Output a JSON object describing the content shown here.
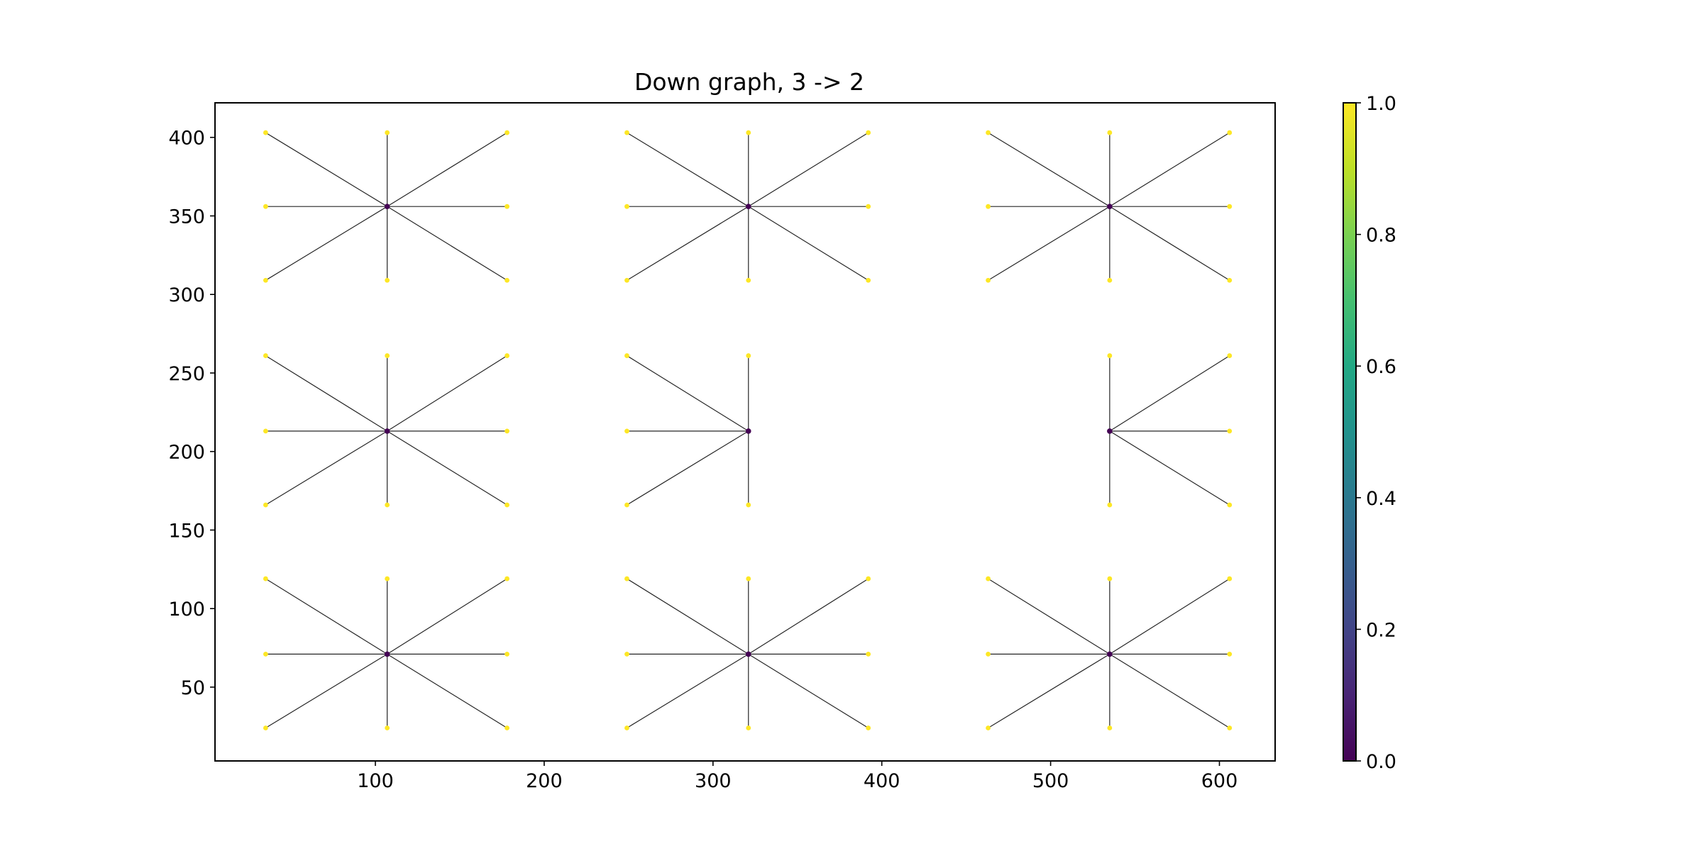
{
  "chart_data": {
    "type": "scatter",
    "title": "Down graph, 3 -> 2",
    "xlabel": "",
    "ylabel": "",
    "xlim": [
      5,
      633
    ],
    "ylim": [
      3,
      422
    ],
    "xticks": [
      100,
      200,
      300,
      400,
      500,
      600
    ],
    "yticks": [
      50,
      100,
      150,
      200,
      250,
      300,
      350,
      400
    ],
    "grid": false,
    "legend": "none",
    "colorbar": {
      "colormap": "viridis",
      "range": [
        0,
        1
      ],
      "ticks": [
        "0.0",
        "0.2",
        "0.4",
        "0.6",
        "0.8",
        "1.0"
      ],
      "stops": [
        "#440154",
        "#482475",
        "#414487",
        "#355f8d",
        "#2a788e",
        "#21918c",
        "#22a884",
        "#44bf70",
        "#7ad151",
        "#bddf26",
        "#fde725"
      ]
    },
    "node_colors": {
      "center": "#440154",
      "leaf": "#fde725"
    },
    "edge_color": "#000000",
    "stars": [
      {
        "center": [
          107,
          71
        ],
        "leaves": [
          [
            35,
            24
          ],
          [
            107,
            24
          ],
          [
            178,
            24
          ],
          [
            35,
            71
          ],
          [
            178,
            71
          ],
          [
            35,
            119
          ],
          [
            107,
            119
          ],
          [
            178,
            119
          ]
        ]
      },
      {
        "center": [
          321,
          71
        ],
        "leaves": [
          [
            249,
            24
          ],
          [
            321,
            24
          ],
          [
            392,
            24
          ],
          [
            249,
            71
          ],
          [
            392,
            71
          ],
          [
            249,
            119
          ],
          [
            321,
            119
          ],
          [
            392,
            119
          ]
        ]
      },
      {
        "center": [
          535,
          71
        ],
        "leaves": [
          [
            463,
            24
          ],
          [
            535,
            24
          ],
          [
            606,
            24
          ],
          [
            463,
            71
          ],
          [
            606,
            71
          ],
          [
            463,
            119
          ],
          [
            535,
            119
          ],
          [
            606,
            119
          ]
        ]
      },
      {
        "center": [
          107,
          213
        ],
        "leaves": [
          [
            35,
            166
          ],
          [
            107,
            166
          ],
          [
            178,
            166
          ],
          [
            35,
            213
          ],
          [
            178,
            213
          ],
          [
            35,
            261
          ],
          [
            107,
            261
          ],
          [
            178,
            261
          ]
        ]
      },
      {
        "center": [
          321,
          213
        ],
        "leaves": [
          [
            249,
            166
          ],
          [
            321,
            166
          ],
          [
            249,
            213
          ],
          [
            249,
            261
          ],
          [
            321,
            261
          ]
        ]
      },
      {
        "center": [
          535,
          213
        ],
        "leaves": [
          [
            535,
            166
          ],
          [
            606,
            166
          ],
          [
            606,
            213
          ],
          [
            535,
            261
          ],
          [
            606,
            261
          ]
        ]
      },
      {
        "center": [
          107,
          356
        ],
        "leaves": [
          [
            35,
            309
          ],
          [
            107,
            309
          ],
          [
            178,
            309
          ],
          [
            35,
            356
          ],
          [
            178,
            356
          ],
          [
            35,
            403
          ],
          [
            107,
            403
          ],
          [
            178,
            403
          ]
        ]
      },
      {
        "center": [
          321,
          356
        ],
        "leaves": [
          [
            249,
            309
          ],
          [
            321,
            309
          ],
          [
            392,
            309
          ],
          [
            249,
            356
          ],
          [
            392,
            356
          ],
          [
            249,
            403
          ],
          [
            321,
            403
          ],
          [
            392,
            403
          ]
        ]
      },
      {
        "center": [
          535,
          356
        ],
        "leaves": [
          [
            463,
            309
          ],
          [
            535,
            309
          ],
          [
            606,
            309
          ],
          [
            463,
            356
          ],
          [
            606,
            356
          ],
          [
            463,
            403
          ],
          [
            535,
            403
          ],
          [
            606,
            403
          ]
        ]
      }
    ]
  }
}
